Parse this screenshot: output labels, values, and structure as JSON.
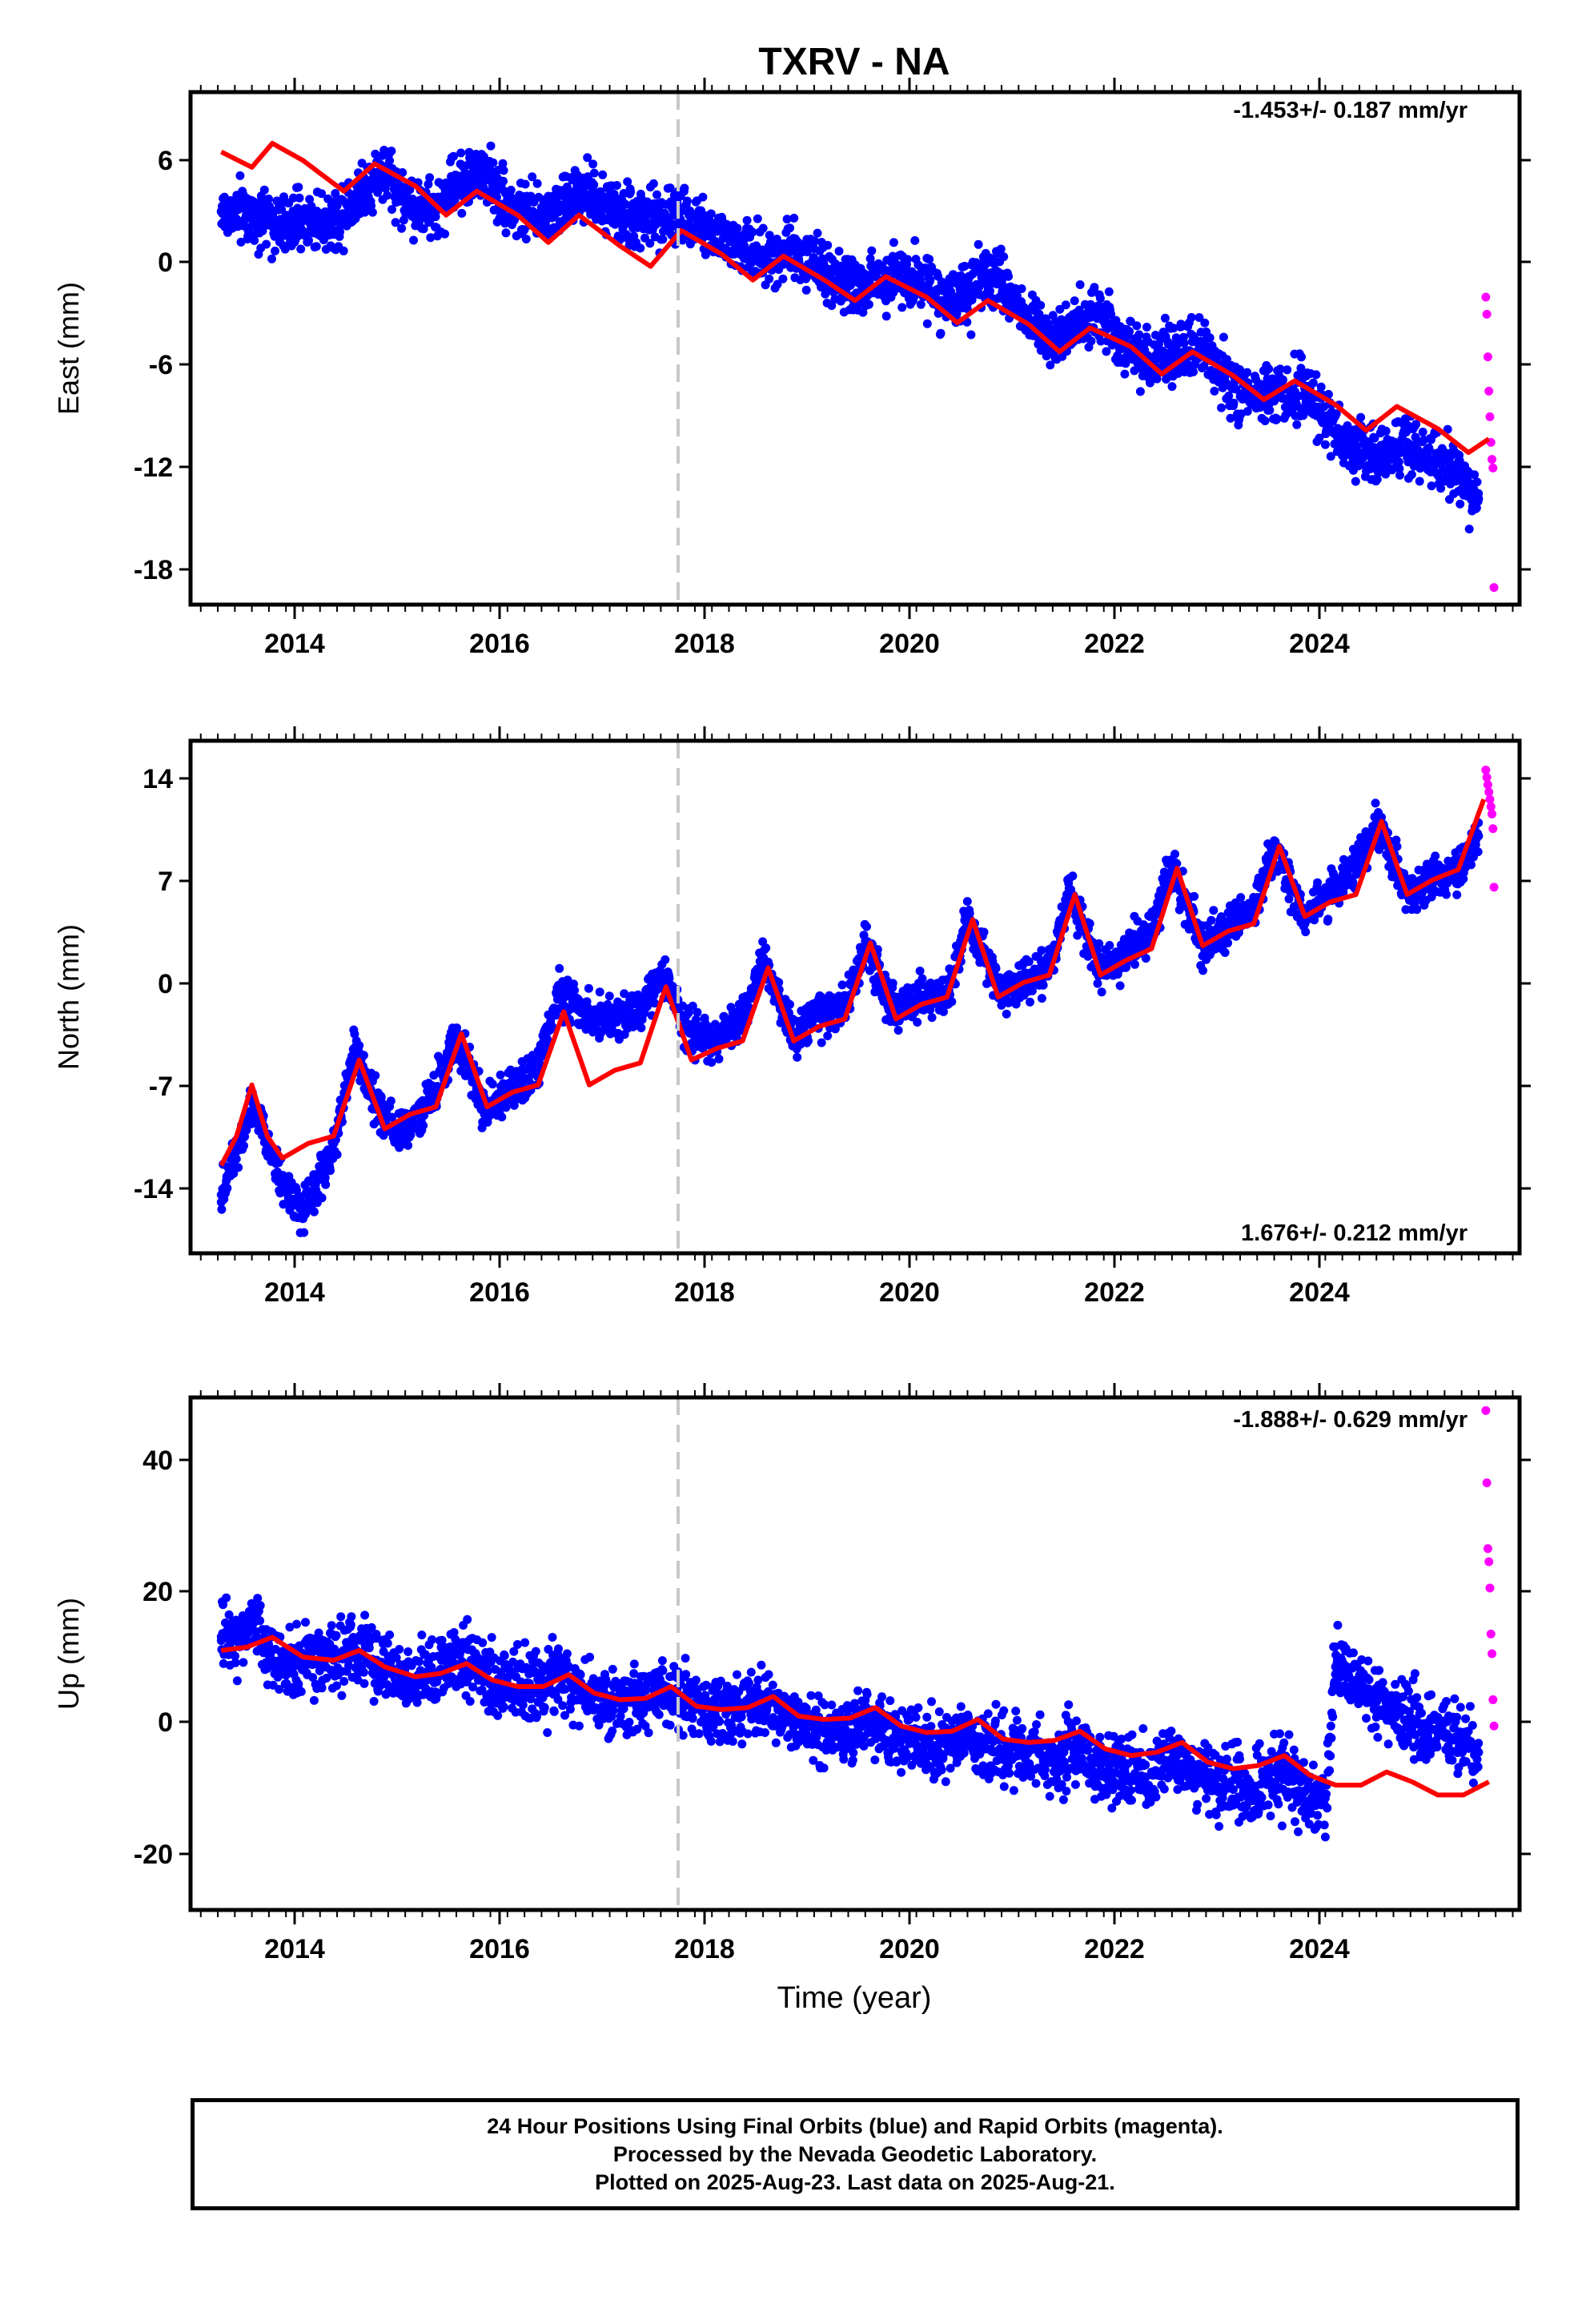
{
  "title": "TXRV - NA",
  "xlabel": "Time (year)",
  "colors": {
    "final": "#0000ff",
    "rapid": "#ff00ff",
    "model": "#ff0000",
    "offset_line": "#c8c8c8"
  },
  "caption": {
    "line1": "24 Hour Positions Using Final Orbits (blue) and Rapid Orbits (magenta).",
    "line2": "Processed by the Nevada Geodetic Laboratory.",
    "line3": "Plotted on 2025-Aug-23. Last data on 2025-Aug-21."
  },
  "chart_data": [
    {
      "type": "scatter",
      "panel": "east",
      "ylabel": "East (mm)",
      "rate_label": "-1.453+/- 0.187 mm/yr",
      "xlim": [
        2012.9,
        2025.9
      ],
      "ylim": [
        -20,
        10
      ],
      "xticks": [
        "2014",
        "2016",
        "2018",
        "2020",
        "2022",
        "2024"
      ],
      "yticks": [
        "6",
        "0",
        "-6",
        "-12",
        "-18"
      ],
      "ytick_values": [
        6,
        0,
        -6,
        -12,
        -18
      ],
      "offset_epoch": 2017.7,
      "series": [
        {
          "kind": "scatter",
          "x": [
            2013.2,
            2013.5,
            2013.8,
            2014.0,
            2014.3,
            2014.5,
            2014.8,
            2015.0,
            2015.3,
            2015.5,
            2015.8,
            2016.0,
            2016.3,
            2016.5,
            2016.8,
            2017.0,
            2017.3,
            2017.5,
            2017.8,
            2018.0,
            2018.3,
            2018.5,
            2018.8,
            2019.0,
            2019.3,
            2019.5,
            2019.8,
            2020.0,
            2020.3,
            2020.5,
            2020.8,
            2021.0,
            2021.3,
            2021.5,
            2021.8,
            2022.0,
            2022.3,
            2022.5,
            2022.8,
            2023.0,
            2023.3,
            2023.5,
            2023.8,
            2024.0,
            2024.3,
            2024.5,
            2024.8,
            2025.0,
            2025.3,
            2025.5
          ],
          "y": [
            3.0,
            2.8,
            2.2,
            2.5,
            2.4,
            3.8,
            5.5,
            3.5,
            3.0,
            4.8,
            5.2,
            3.5,
            2.5,
            3.4,
            4.0,
            3.0,
            2.6,
            2.8,
            2.6,
            1.8,
            0.9,
            0.3,
            0.9,
            0.0,
            -1.2,
            -1.5,
            -0.6,
            -0.8,
            -2.2,
            -1.8,
            -0.6,
            -2.7,
            -4.2,
            -4.0,
            -2.8,
            -4.5,
            -5.8,
            -5.5,
            -5.0,
            -6.8,
            -8.2,
            -7.8,
            -7.2,
            -9.2,
            -10.8,
            -11.5,
            -10.5,
            -11.5,
            -12.5,
            -13.8
          ]
        },
        {
          "kind": "line",
          "name": "model",
          "x": [
            2013.2,
            2013.5,
            2013.7,
            2014.0,
            2014.4,
            2014.7,
            2015.1,
            2015.4,
            2015.7,
            2016.1,
            2016.4,
            2016.7,
            2017.1,
            2017.4,
            2017.7,
            2018.1,
            2018.4,
            2018.7,
            2019.1,
            2019.4,
            2019.7,
            2020.1,
            2020.4,
            2020.7,
            2021.1,
            2021.4,
            2021.7,
            2022.1,
            2022.4,
            2022.7,
            2023.1,
            2023.4,
            2023.7,
            2024.1,
            2024.4,
            2024.7,
            2025.1,
            2025.4,
            2025.6
          ],
          "y": [
            6.5,
            5.6,
            7.0,
            6.0,
            4.2,
            5.8,
            4.5,
            2.8,
            4.2,
            2.8,
            1.2,
            2.8,
            1.0,
            -0.2,
            1.9,
            0.5,
            -1.0,
            0.4,
            -1.0,
            -2.2,
            -0.8,
            -2.0,
            -3.5,
            -2.2,
            -3.6,
            -5.2,
            -3.8,
            -4.9,
            -6.5,
            -5.2,
            -6.6,
            -8.0,
            -6.9,
            -8.3,
            -9.8,
            -8.4,
            -9.7,
            -11.1,
            -10.3
          ]
        },
        {
          "kind": "scatter",
          "name": "rapid",
          "x": [
            2025.57,
            2025.58,
            2025.59,
            2025.6,
            2025.61,
            2025.62,
            2025.63,
            2025.64,
            2025.65
          ],
          "y": [
            -2.0,
            -3.0,
            -5.5,
            -7.5,
            -9.0,
            -10.5,
            -11.5,
            -12.0,
            -19.0
          ]
        }
      ]
    },
    {
      "type": "scatter",
      "panel": "north",
      "ylabel": "North (mm)",
      "rate_label": "1.676+/- 0.212 mm/yr",
      "xlim": [
        2012.9,
        2025.9
      ],
      "ylim": [
        -18,
        17
      ],
      "xticks": [
        "2014",
        "2016",
        "2018",
        "2020",
        "2022",
        "2024"
      ],
      "yticks": [
        "14",
        "7",
        "0",
        "-7",
        "-14"
      ],
      "ytick_values": [
        14,
        7,
        0,
        -7,
        -14
      ],
      "offset_epoch": 2017.7,
      "series": [
        {
          "kind": "scatter",
          "x": [
            2013.2,
            2013.5,
            2013.8,
            2014.0,
            2014.3,
            2014.5,
            2014.8,
            2015.0,
            2015.3,
            2015.5,
            2015.8,
            2016.0,
            2016.3,
            2016.5,
            2016.8,
            2017.0,
            2017.3,
            2017.5,
            2017.8,
            2018.0,
            2018.3,
            2018.5,
            2018.8,
            2019.0,
            2019.3,
            2019.5,
            2019.8,
            2020.0,
            2020.3,
            2020.5,
            2020.8,
            2021.0,
            2021.3,
            2021.5,
            2021.8,
            2022.0,
            2022.3,
            2022.5,
            2022.8,
            2023.0,
            2023.3,
            2023.5,
            2023.8,
            2024.0,
            2024.3,
            2024.5,
            2024.8,
            2025.0,
            2025.3,
            2025.5
          ],
          "y": [
            -14.0,
            -7.5,
            -13.0,
            -15.5,
            -11.0,
            -4.0,
            -9.0,
            -9.5,
            -7.0,
            -3.0,
            -8.5,
            -7.0,
            -5.5,
            0.0,
            -1.8,
            -2.0,
            -1.5,
            1.0,
            -3.0,
            -3.5,
            -2.0,
            2.0,
            -3.0,
            -2.0,
            -1.0,
            3.0,
            -1.5,
            -0.5,
            -0.5,
            5.0,
            0.0,
            0.5,
            1.5,
            6.5,
            1.5,
            2.0,
            4.0,
            8.5,
            3.0,
            4.0,
            5.5,
            9.5,
            5.0,
            6.5,
            8.5,
            11.5,
            6.5,
            7.5,
            8.0,
            10.5
          ]
        },
        {
          "kind": "line",
          "name": "model",
          "x": [
            2013.2,
            2013.35,
            2013.5,
            2013.65,
            2013.8,
            2014.05,
            2014.3,
            2014.55,
            2014.8,
            2015.05,
            2015.3,
            2015.55,
            2015.8,
            2016.05,
            2016.3,
            2016.55,
            2016.8,
            2017.05,
            2017.3,
            2017.55,
            2017.8,
            2018.05,
            2018.3,
            2018.55,
            2018.8,
            2019.05,
            2019.3,
            2019.55,
            2019.8,
            2020.05,
            2020.3,
            2020.55,
            2020.8,
            2021.05,
            2021.3,
            2021.55,
            2021.8,
            2022.05,
            2022.3,
            2022.55,
            2022.8,
            2023.05,
            2023.3,
            2023.55,
            2023.8,
            2024.05,
            2024.3,
            2024.55,
            2024.8,
            2025.05,
            2025.3,
            2025.55
          ],
          "y": [
            -12.0,
            -10.0,
            -6.5,
            -10.0,
            -11.5,
            -10.5,
            -10.0,
            -4.8,
            -9.5,
            -8.5,
            -8.0,
            -3.0,
            -8.0,
            -7.0,
            -6.5,
            -1.5,
            -6.5,
            -5.5,
            -5.0,
            0.2,
            -4.8,
            -4.0,
            -3.5,
            1.5,
            -3.5,
            -2.5,
            -2.0,
            3.2,
            -2.0,
            -1.0,
            -0.5,
            4.8,
            -0.5,
            0.5,
            1.0,
            6.5,
            1.0,
            2.0,
            2.8,
            8.3,
            3.0,
            4.0,
            4.5,
            9.8,
            5.0,
            6.0,
            6.5,
            11.5,
            6.5,
            7.5,
            8.2,
            13.0
          ]
        },
        {
          "kind": "scatter",
          "name": "rapid",
          "x": [
            2025.57,
            2025.58,
            2025.59,
            2025.6,
            2025.61,
            2025.62,
            2025.63,
            2025.64,
            2025.65
          ],
          "y": [
            15.0,
            14.5,
            14.0,
            13.5,
            13.0,
            12.5,
            12.0,
            11.0,
            7.0
          ]
        }
      ]
    },
    {
      "type": "scatter",
      "panel": "up",
      "ylabel": "Up (mm)",
      "rate_label": "-1.888+/- 0.629 mm/yr",
      "xlim": [
        2012.9,
        2025.9
      ],
      "ylim": [
        -29,
        49
      ],
      "xticks": [
        "2014",
        "2016",
        "2018",
        "2020",
        "2022",
        "2024"
      ],
      "yticks": [
        "40",
        "20",
        "0",
        "-20"
      ],
      "ytick_values": [
        40,
        20,
        0,
        -20
      ],
      "offset_epoch": 2017.7,
      "series": [
        {
          "kind": "scatter",
          "x": [
            2013.2,
            2013.5,
            2013.8,
            2014.0,
            2014.3,
            2014.5,
            2014.8,
            2015.0,
            2015.3,
            2015.5,
            2015.8,
            2016.0,
            2016.3,
            2016.5,
            2016.8,
            2017.0,
            2017.3,
            2017.5,
            2017.8,
            2018.0,
            2018.3,
            2018.5,
            2018.8,
            2019.0,
            2019.3,
            2019.5,
            2019.8,
            2020.0,
            2020.3,
            2020.5,
            2020.8,
            2021.0,
            2021.3,
            2021.5,
            2021.8,
            2022.0,
            2022.3,
            2022.5,
            2022.8,
            2023.0,
            2023.3,
            2023.5,
            2023.8,
            2024.0,
            2024.1,
            2024.3,
            2024.5,
            2024.8,
            2025.0,
            2025.3,
            2025.5
          ],
          "y": [
            12.0,
            14.0,
            8.0,
            9.0,
            9.0,
            11.0,
            8.0,
            6.0,
            7.0,
            10.0,
            6.0,
            5.0,
            5.0,
            7.0,
            4.0,
            2.0,
            3.0,
            5.0,
            2.0,
            1.0,
            2.0,
            3.0,
            0.0,
            -1.0,
            -2.0,
            0.0,
            -3.0,
            -4.0,
            -4.0,
            -2.0,
            -5.0,
            -5.0,
            -6.0,
            -4.0,
            -7.0,
            -7.0,
            -8.0,
            -6.0,
            -9.0,
            -9.0,
            -11.0,
            -8.0,
            -11.0,
            -12.0,
            8.0,
            5.0,
            3.0,
            0.0,
            -1.0,
            -3.0,
            -5.0
          ]
        },
        {
          "kind": "line",
          "name": "model",
          "x": [
            2013.2,
            2013.45,
            2013.7,
            2014.0,
            2014.3,
            2014.55,
            2014.8,
            2015.1,
            2015.35,
            2015.6,
            2015.85,
            2016.1,
            2016.35,
            2016.6,
            2016.85,
            2017.1,
            2017.35,
            2017.6,
            2017.85,
            2018.1,
            2018.35,
            2018.6,
            2018.85,
            2019.1,
            2019.35,
            2019.6,
            2019.85,
            2020.1,
            2020.35,
            2020.6,
            2020.85,
            2021.1,
            2021.35,
            2021.6,
            2021.85,
            2022.1,
            2022.35,
            2022.6,
            2022.85,
            2023.1,
            2023.35,
            2023.6,
            2023.85,
            2024.1,
            2024.35,
            2024.6,
            2024.85,
            2025.1,
            2025.35,
            2025.6
          ],
          "y": [
            10.5,
            11.0,
            12.5,
            9.5,
            9.0,
            10.5,
            8.0,
            6.5,
            7.0,
            8.5,
            6.0,
            5.0,
            5.0,
            6.8,
            4.0,
            3.0,
            3.2,
            5.0,
            2.0,
            1.5,
            1.8,
            3.5,
            0.5,
            0.0,
            0.2,
            1.8,
            -1.0,
            -2.0,
            -1.8,
            0.0,
            -3.0,
            -3.5,
            -3.2,
            -1.8,
            -4.5,
            -5.5,
            -5.0,
            -3.5,
            -6.5,
            -7.5,
            -7.0,
            -5.5,
            -8.5,
            -10.0,
            -10.0,
            -8.0,
            -9.5,
            -11.5,
            -11.5,
            -9.5
          ]
        },
        {
          "kind": "scatter",
          "name": "rapid",
          "x": [
            2025.57,
            2025.58,
            2025.59,
            2025.6,
            2025.61,
            2025.62,
            2025.63,
            2025.64,
            2025.65
          ],
          "y": [
            47.0,
            36.0,
            26.0,
            24.0,
            20.0,
            13.0,
            10.0,
            3.0,
            -1.0
          ]
        }
      ]
    }
  ]
}
